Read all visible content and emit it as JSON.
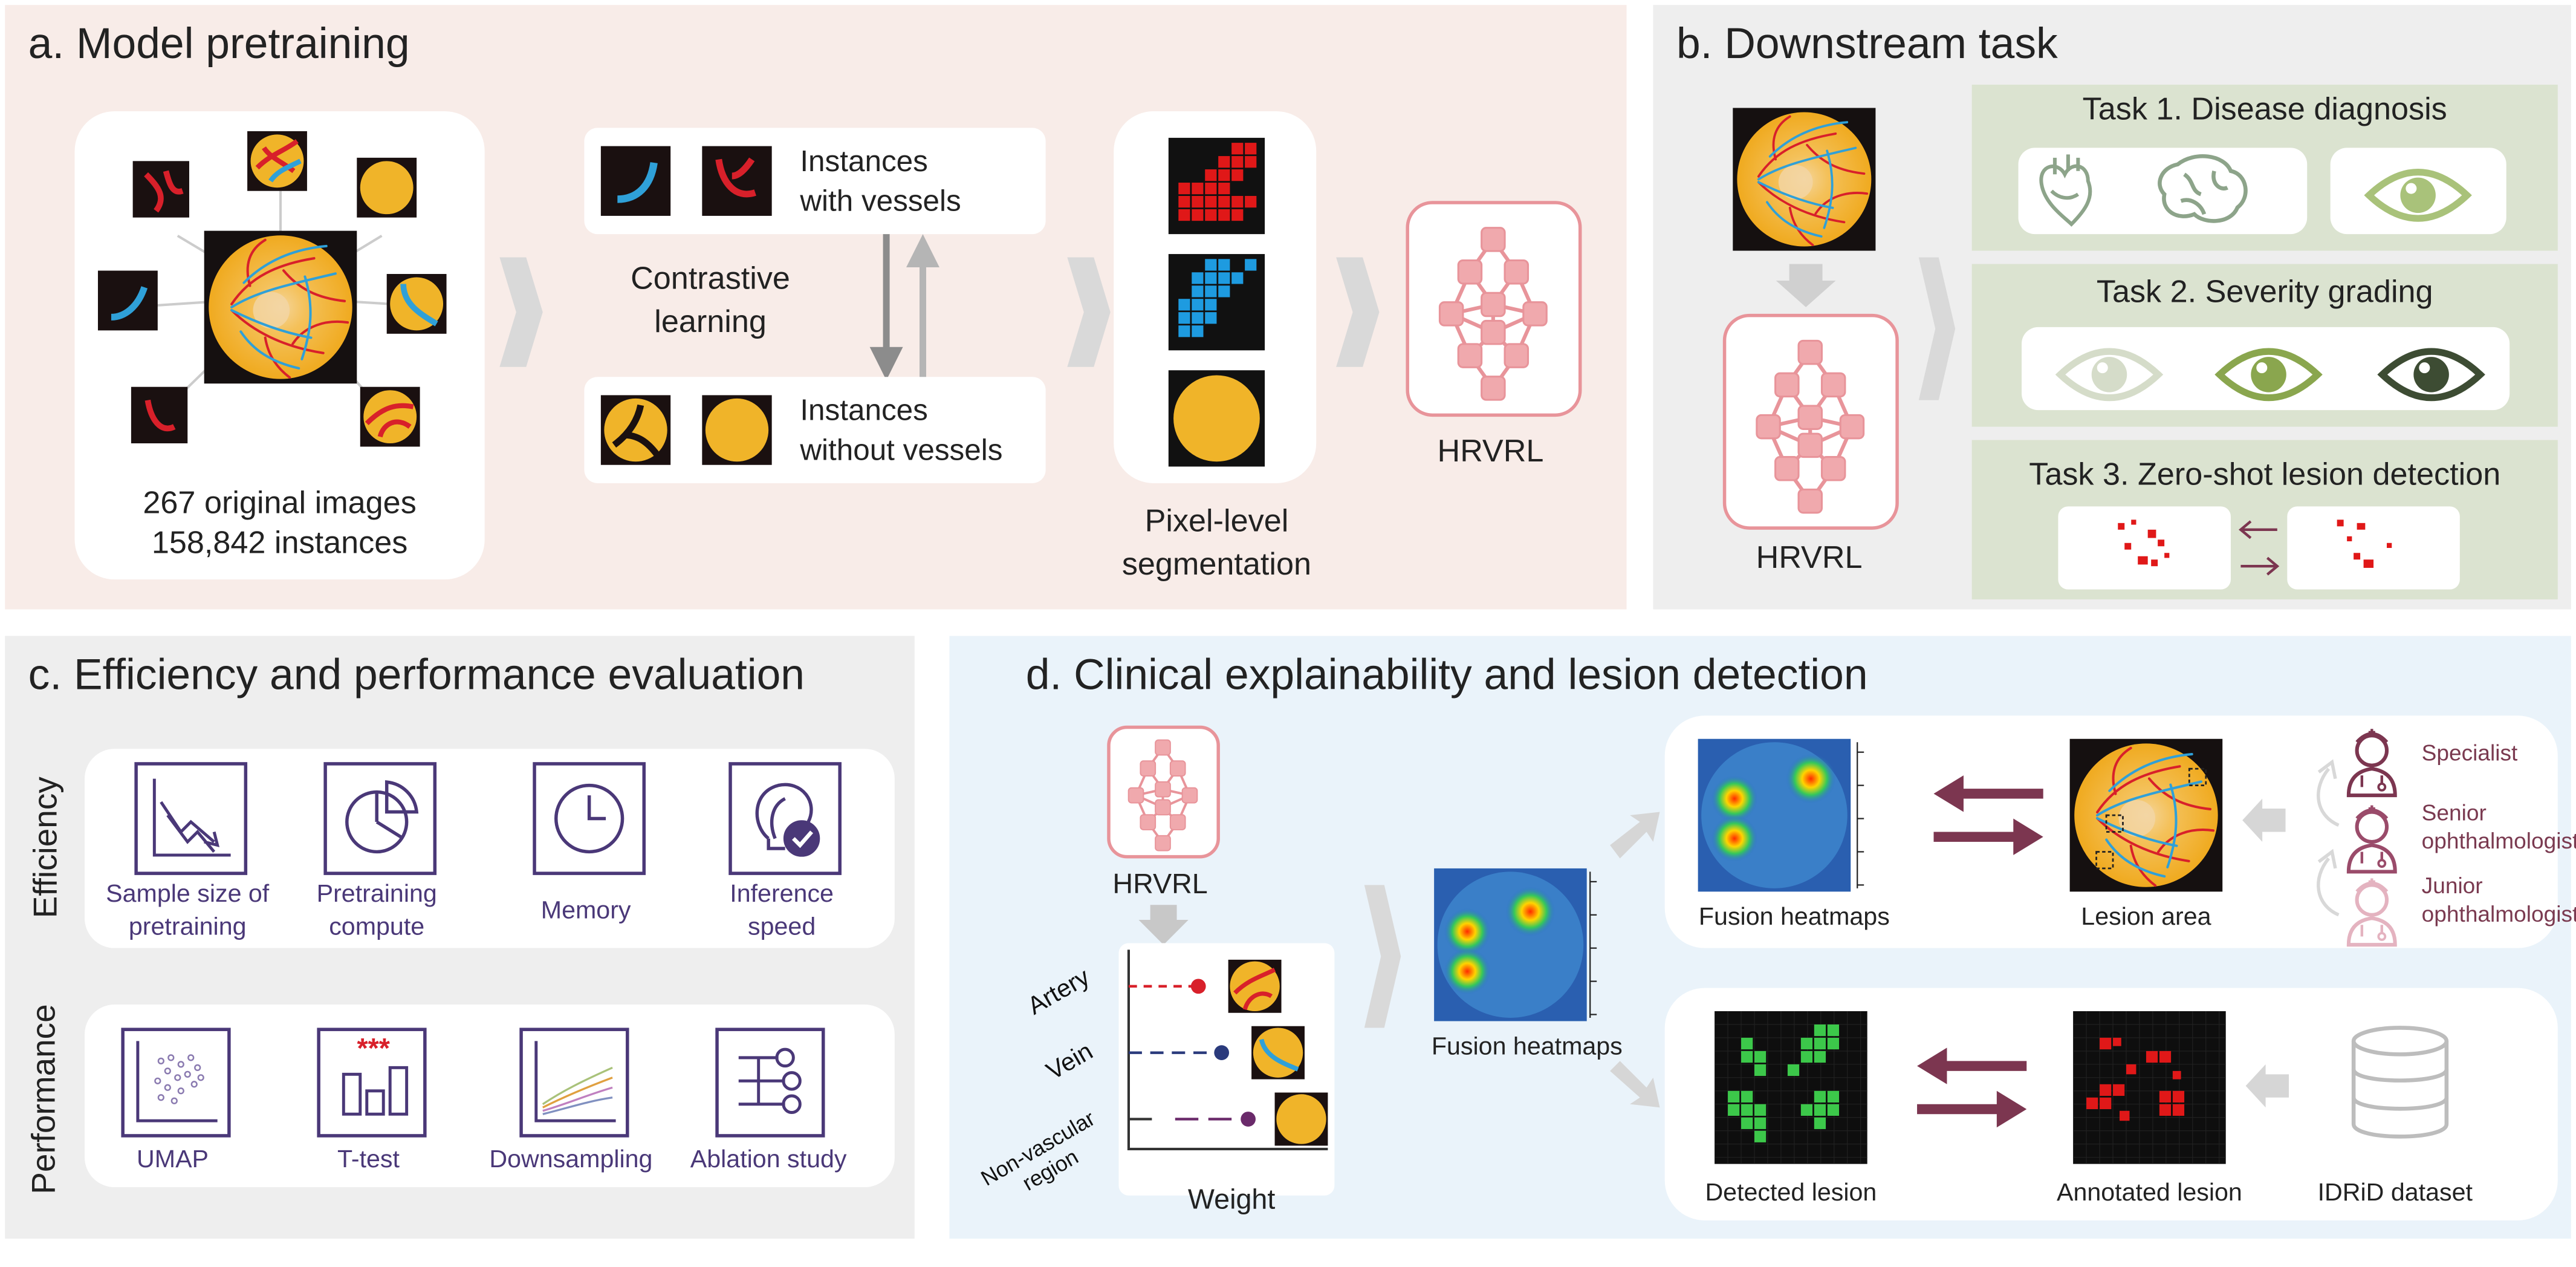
{
  "panel_a": {
    "title": "a. Model pretraining",
    "stats_line1": "267 original images",
    "stats_line2": "158,842 instances",
    "with_vessels_line1": "Instances",
    "with_vessels_line2": "with vessels",
    "contrastive_line1": "Contrastive",
    "contrastive_line2": "learning",
    "without_vessels_line1": "Instances",
    "without_vessels_line2": "without vessels",
    "seg_line1": "Pixel-level",
    "seg_line2": "segmentation",
    "model_label": "HRVRL"
  },
  "panel_b": {
    "title": "b. Downstream task",
    "model_label": "HRVRL",
    "task1": "Task 1. Disease diagnosis",
    "task2": "Task 2. Severity grading",
    "task3": "Task 3. Zero-shot lesion detection"
  },
  "panel_c": {
    "title": "c. Efficiency and performance evaluation",
    "efficiency_label": "Efficiency",
    "performance_label": "Performance",
    "efficiency_items": [
      {
        "line1": "Sample size of",
        "line2": "pretraining",
        "icon": "trend-down-icon"
      },
      {
        "line1": "Pretraining",
        "line2": "compute",
        "icon": "pie-chart-icon"
      },
      {
        "line1": "Memory",
        "line2": "",
        "icon": "clock-icon"
      },
      {
        "line1": "Inference",
        "line2": "speed",
        "icon": "lightbulb-check-icon"
      }
    ],
    "performance_items": [
      {
        "line1": "UMAP",
        "icon": "scatter-icon"
      },
      {
        "line1": "T-test",
        "icon": "bar-significance-icon",
        "stars": "***"
      },
      {
        "line1": "Downsampling",
        "icon": "lines-icon"
      },
      {
        "line1": "Ablation study",
        "icon": "sliders-icon"
      }
    ]
  },
  "panel_d": {
    "title": "d. Clinical explainability and lesion detection",
    "model_label": "HRVRL",
    "weight_rows": [
      "Artery",
      "Vein",
      "Non-vascular region"
    ],
    "weight_axis": "Weight",
    "fusion_left": "Fusion heatmaps",
    "fusion_top": "Fusion heatmaps",
    "lesion_area": "Lesion area",
    "doctors": [
      "Specialist",
      "Senior ophthalmologist",
      "Junior ophthalmologist"
    ],
    "detected_lesion": "Detected lesion",
    "annotated_lesion": "Annotated lesion",
    "dataset": "IDRiD dataset"
  },
  "colors": {
    "panel_a_bg": "#f8ece8",
    "panel_b_bg": "#eeeeee",
    "panel_c_bg": "#eeeeee",
    "panel_d_bg": "#eaf3fa",
    "task_bg": "#dbe3d0",
    "model_pink": "#e8949a",
    "eval_purple": "#4a3878",
    "arrow_maroon": "#7c3650",
    "fundus_yellow": "#f0b429",
    "vessel_red": "#d8202a",
    "vessel_blue": "#2fa0d8",
    "eye_green": "#8aa64e"
  }
}
